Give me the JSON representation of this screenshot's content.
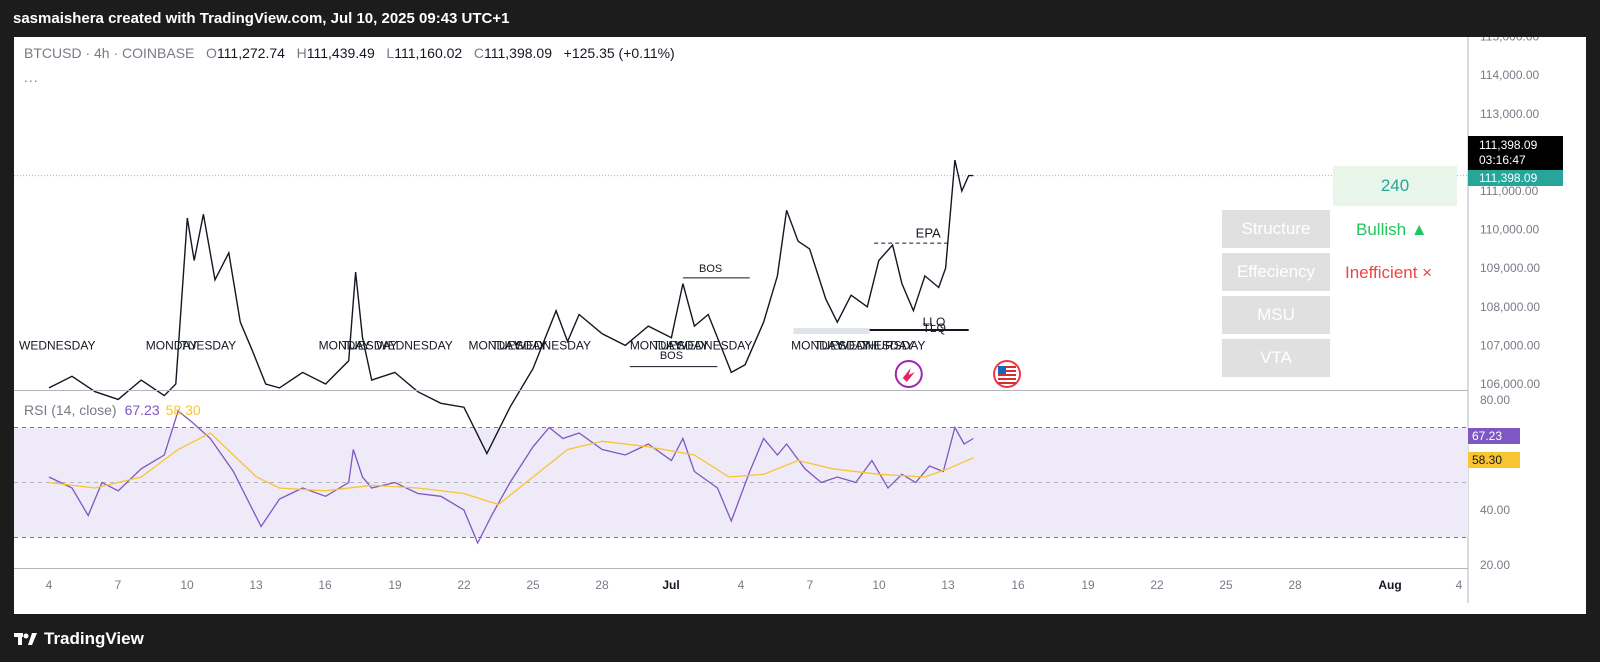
{
  "header": {
    "title": "sasmaishera created with TradingView.com, Jul 10, 2025 09:43 UTC+1"
  },
  "legend": {
    "symbol": "BTCUSD · 4h · COINBASE",
    "open_label": "O",
    "open": "111,272.74",
    "high_label": "H",
    "high": "111,439.49",
    "low_label": "L",
    "low": "111,160.02",
    "close_label": "C",
    "close": "111,398.09",
    "change": "+125.35 (+0.11%)",
    "more": "..."
  },
  "price_axis": {
    "ticks": [
      "115,000.00",
      "114,000.00",
      "113,000.00",
      "112,000.00",
      "111,000.00",
      "110,000.00",
      "109,000.00",
      "108,000.00",
      "107,000.00",
      "106,000.00"
    ],
    "last_price": "111,398.09",
    "countdown": "03:16:47",
    "last_price_2": "111,398.09"
  },
  "time_axis": {
    "ticks": [
      "4",
      "7",
      "10",
      "13",
      "16",
      "19",
      "22",
      "25",
      "28",
      "Jul",
      "4",
      "7",
      "10",
      "13",
      "16",
      "19",
      "22",
      "25",
      "28",
      "Aug",
      "4"
    ]
  },
  "rsi": {
    "label": "RSI (14, close)",
    "value": "67.23",
    "ma_value": "58.30",
    "ticks": [
      "80.00",
      "40.00",
      "20.00"
    ],
    "colors": {
      "rsi": "#7e57c2",
      "ma": "#f7c531",
      "band": "#efeaf8"
    }
  },
  "annotations": {
    "bos_1": "BOS",
    "bos_2": "BOS",
    "epa": "EPA",
    "llq": "LLQ",
    "tlq": "TLQ",
    "day_labels": [
      "WEDNESDAY",
      "MONDAY",
      "TUESDAY",
      "MONDAY",
      "TUESDAY",
      "WEDNESDAY",
      "MONDAY",
      "TUESDAY",
      "WEDNESDAY",
      "MONDAY",
      "TUESDAY",
      "WEDNESDAY",
      "MONDAY",
      "TUESDAY",
      "WEDNESDAY",
      "THURSDAY"
    ]
  },
  "dashboard": {
    "count": "240",
    "rows": [
      {
        "label": "Structure",
        "value": "Bullish ▲",
        "color": "#22c55e"
      },
      {
        "label": "Effeciency",
        "value": "Inefficient ×",
        "color": "#ef4444"
      },
      {
        "label": "MSU",
        "value": ""
      },
      {
        "label": "VTA",
        "value": ""
      }
    ]
  },
  "chart_data": {
    "type": "line",
    "title": "BTCUSD · 4h · COINBASE",
    "x": [
      "Jun 4",
      "Jun 7",
      "Jun 10",
      "Jun 13",
      "Jun 16",
      "Jun 19",
      "Jun 22",
      "Jun 25",
      "Jun 28",
      "Jul 1",
      "Jul 4",
      "Jul 7",
      "Jul 10"
    ],
    "series": [
      {
        "name": "BTCUSD",
        "values": [
          105900,
          105700,
          110400,
          106500,
          108500,
          105800,
          104200,
          107300,
          107500,
          106300,
          110500,
          108200,
          111398
        ]
      },
      {
        "name": "RSI (14, close)",
        "values": [
          52,
          38,
          76,
          34,
          50,
          45,
          28,
          70,
          61,
          36,
          66,
          48,
          67.23
        ]
      },
      {
        "name": "RSI-based MA",
        "values": [
          50,
          48,
          68,
          45,
          48,
          50,
          40,
          60,
          64,
          48,
          55,
          55,
          58.3
        ]
      }
    ],
    "ylim": [
      106000,
      115000
    ],
    "rsi_ylim": [
      20,
      80
    ],
    "grid": false
  }
}
